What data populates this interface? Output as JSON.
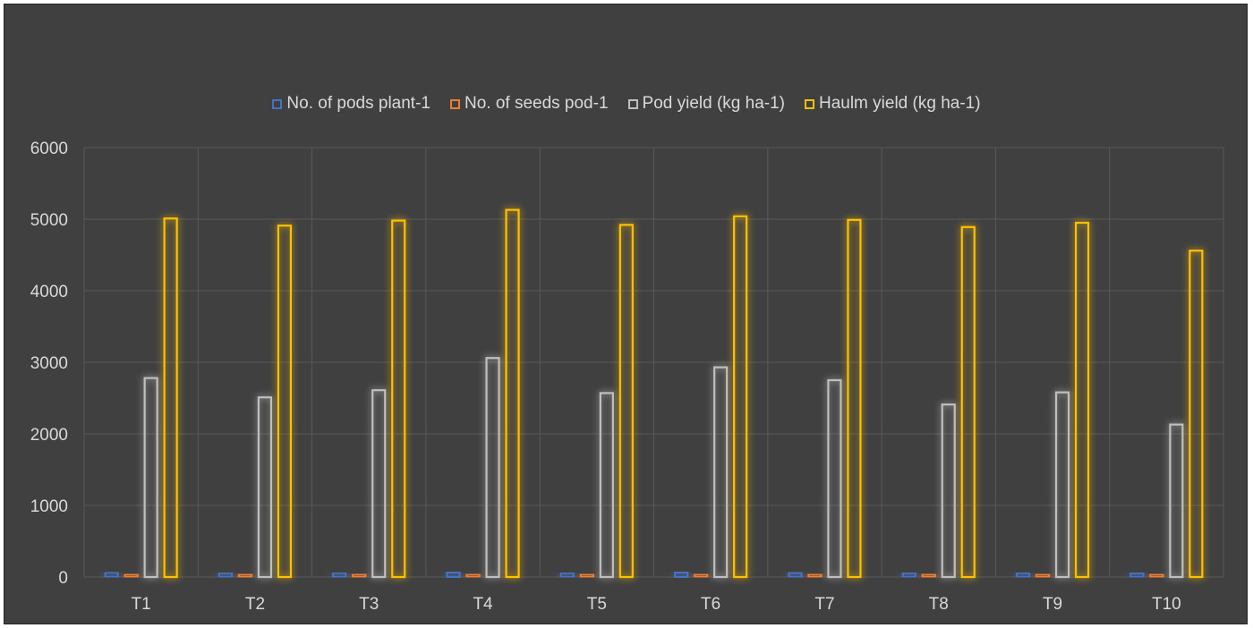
{
  "chart_data": {
    "type": "bar",
    "title": "",
    "xlabel": "",
    "ylabel": "",
    "ylim": [
      0,
      6000
    ],
    "yticks": [
      0,
      1000,
      2000,
      3000,
      4000,
      5000,
      6000
    ],
    "grid": true,
    "legend_position": "top",
    "categories": [
      "T1",
      "T2",
      "T3",
      "T4",
      "T5",
      "T6",
      "T7",
      "T8",
      "T9",
      "T10"
    ],
    "series": [
      {
        "name": "No. of pods plant-1",
        "color": "#4472c4",
        "values": [
          62,
          55,
          56,
          64,
          55,
          63,
          57,
          54,
          56,
          52
        ]
      },
      {
        "name": "No. of seeds pod-1",
        "color": "#ed7d31",
        "values": [
          2,
          2,
          2,
          2,
          2,
          2,
          2,
          2,
          2,
          2
        ]
      },
      {
        "name": "Pod yield (kg ha-1)",
        "color": "#bfbfbf",
        "values": [
          2780,
          2510,
          2610,
          3060,
          2570,
          2930,
          2750,
          2410,
          2580,
          2130
        ]
      },
      {
        "name": "Haulm yield (kg ha-1)",
        "color": "#ffc000",
        "values": [
          5010,
          4910,
          4980,
          5130,
          4920,
          5040,
          4990,
          4890,
          4950,
          4560
        ]
      }
    ]
  }
}
